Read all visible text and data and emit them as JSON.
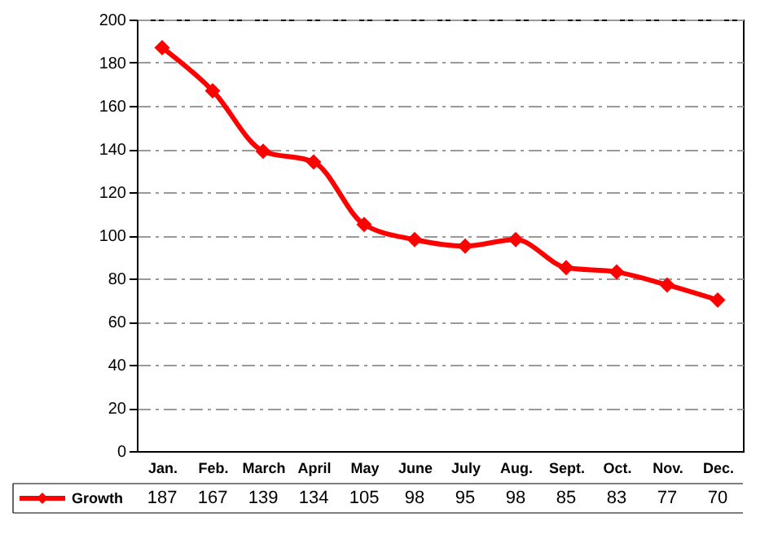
{
  "chart_data": {
    "type": "line",
    "categories": [
      "Jan.",
      "Feb.",
      "March",
      "April",
      "May",
      "June",
      "July",
      "Aug.",
      "Sept.",
      "Oct.",
      "Nov.",
      "Dec."
    ],
    "series": [
      {
        "name": "Growth",
        "color": "#ff0000",
        "values": [
          187,
          167,
          139,
          134,
          105,
          98,
          95,
          98,
          85,
          83,
          77,
          70
        ]
      }
    ],
    "ylim": [
      0,
      200
    ],
    "yticks": [
      0,
      20,
      40,
      60,
      80,
      100,
      120,
      140,
      160,
      180,
      200
    ],
    "grid": "y",
    "marker": "diamond",
    "line_style": "solid",
    "legend": "bottom left",
    "data_labels": true
  }
}
